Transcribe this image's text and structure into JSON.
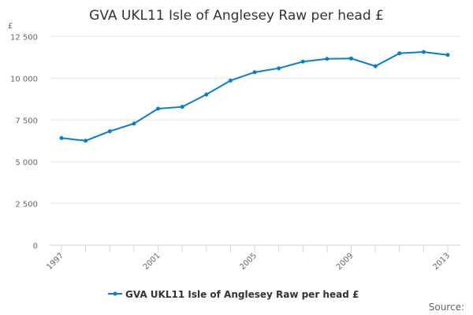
{
  "chart_data": {
    "type": "line",
    "title": "GVA UKL11 Isle of Anglesey Raw per head £",
    "ylabel": "£",
    "xlabel": "",
    "x": [
      1997,
      1998,
      1999,
      2000,
      2001,
      2002,
      2003,
      2004,
      2005,
      2006,
      2007,
      2008,
      2009,
      2010,
      2011,
      2012,
      2013
    ],
    "series": [
      {
        "name": "GVA UKL11 Isle of Anglesey Raw per head £",
        "color": "#0a7fc4",
        "values": [
          6415,
          6255,
          6821,
          7278,
          8175,
          8283,
          9024,
          9858,
          10358,
          10594,
          10991,
          11160,
          11179,
          10722,
          11491,
          11571,
          11396
        ]
      }
    ],
    "ylim": [
      0,
      12500
    ],
    "yticks": [
      {
        "v": 0,
        "label": "0"
      },
      {
        "v": 2500,
        "label": "2 500"
      },
      {
        "v": 5000,
        "label": "5 000"
      },
      {
        "v": 7500,
        "label": "7 500"
      },
      {
        "v": 10000,
        "label": "10 000"
      },
      {
        "v": 12500,
        "label": "12 500"
      }
    ],
    "xticks": [
      {
        "v": 1997,
        "label": "1997"
      },
      {
        "v": 2001,
        "label": "2001"
      },
      {
        "v": 2005,
        "label": "2005"
      },
      {
        "v": 2009,
        "label": "2009"
      },
      {
        "v": 2013,
        "label": "2013"
      }
    ],
    "grid": true,
    "legend": "bottom"
  },
  "credits": "Source:"
}
